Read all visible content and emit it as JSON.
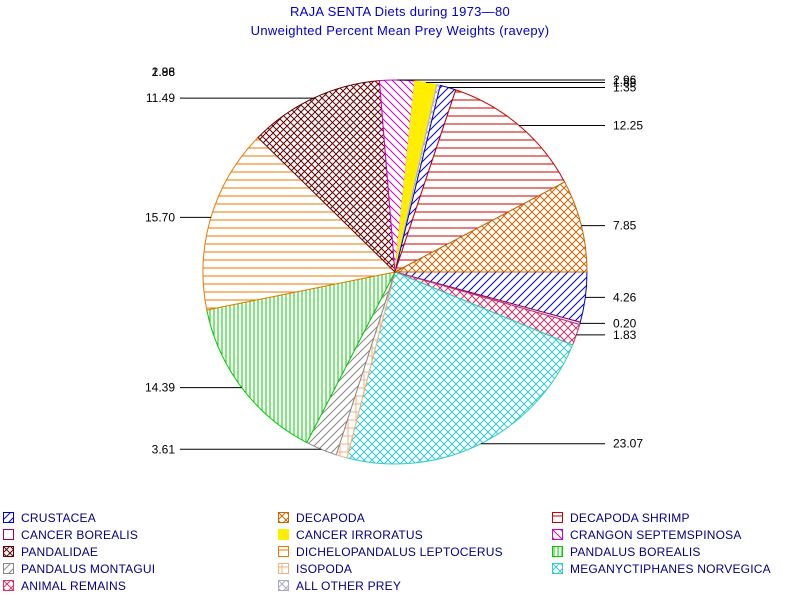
{
  "chart_data": {
    "type": "pie",
    "title": "RAJA SENTA Diets during 1973—80",
    "subtitle": "Unweighted Percent Mean Prey Weights (ravepy)",
    "slices": [
      {
        "name": "CRUSTACEA",
        "value": 4.26,
        "label": "4.26",
        "color": "#0000cc",
        "pattern": "diag-up"
      },
      {
        "name": "CANCER BOREALIS",
        "value": 0.2,
        "label": "0.20",
        "color": "#990066",
        "pattern": "outline"
      },
      {
        "name": "PANDALIDAE",
        "value": 1.83,
        "label": "1.83",
        "color": "#cc3366",
        "pattern": "cross"
      },
      {
        "name": "MEGANYCTIPHANES NORVEGICA",
        "value": 23.07,
        "label": "23.07",
        "color": "#33cccc",
        "pattern": "cross"
      },
      {
        "name": "ISOPODA",
        "value": 0.93,
        "label": "",
        "color": "#f0b080",
        "pattern": "grid"
      },
      {
        "name": "PANDALUS MONTAGUI",
        "value": 2.68,
        "label": "3.61",
        "color": "#888888",
        "pattern": "diag-up"
      },
      {
        "name": "PANDALUS BOREALIS",
        "value": 14.39,
        "label": "14.39",
        "color": "#00cc00",
        "pattern": "vertical"
      },
      {
        "name": "DICHELOPANDALUS LEPTOCERUS",
        "value": 15.7,
        "label": "15.70",
        "color": "#ee7700",
        "pattern": "horizontal"
      },
      {
        "name": "PANDALIDAE",
        "value": 11.49,
        "label": "11.49",
        "color": "#660000",
        "pattern": "cross-dense"
      },
      {
        "name": "CRANGON SEPTEMSPINOSA",
        "value": 2.96,
        "label": "2.96",
        "color": "#cc00cc",
        "pattern": "diag-down"
      },
      {
        "name": "CANCER IRRORATUS",
        "value": 1.88,
        "label": "1.88",
        "color": "#ffee00",
        "pattern": "solid"
      },
      {
        "name": "ALL OTHER PREY",
        "value": 0.3,
        "label": "",
        "color": "#aaaacc",
        "pattern": "cross"
      },
      {
        "name": "CRUSTACEA",
        "value": 1.35,
        "label": "1.35",
        "color": "#0000cc",
        "pattern": "diag-up"
      },
      {
        "name": "DECAPODA SHRIMP",
        "value": 12.25,
        "label": "12.25",
        "color": "#cc0000",
        "pattern": "horizontal"
      },
      {
        "name": "DECAPODA",
        "value": 7.85,
        "label": "7.85",
        "color": "#cc6600",
        "pattern": "cross"
      }
    ],
    "legend": [
      {
        "label": "CRUSTACEA",
        "color": "#0000cc",
        "pattern": "diag-up"
      },
      {
        "label": "DECAPODA",
        "color": "#cc6600",
        "pattern": "cross"
      },
      {
        "label": "DECAPODA SHRIMP",
        "color": "#cc0000",
        "pattern": "horizontal"
      },
      {
        "label": "CANCER BOREALIS",
        "color": "#990066",
        "pattern": "outline"
      },
      {
        "label": "CANCER IRRORATUS",
        "color": "#ffee00",
        "pattern": "solid"
      },
      {
        "label": "CRANGON SEPTEMSPINOSA",
        "color": "#cc00cc",
        "pattern": "diag-down"
      },
      {
        "label": "PANDALIDAE",
        "color": "#660000",
        "pattern": "cross-dense"
      },
      {
        "label": "DICHELOPANDALUS LEPTOCERUS",
        "color": "#ee7700",
        "pattern": "horizontal"
      },
      {
        "label": "PANDALUS BOREALIS",
        "color": "#00cc00",
        "pattern": "vertical"
      },
      {
        "label": "PANDALUS MONTAGUI",
        "color": "#888888",
        "pattern": "diag-up"
      },
      {
        "label": "ISOPODA",
        "color": "#f0b080",
        "pattern": "grid"
      },
      {
        "label": "MEGANYCTIPHANES NORVEGICA",
        "color": "#33cccc",
        "pattern": "cross"
      },
      {
        "label": "ANIMAL REMAINS",
        "color": "#dd3366",
        "pattern": "cross"
      },
      {
        "label": "ALL OTHER PREY",
        "color": "#aaaacc",
        "pattern": "cross"
      }
    ],
    "legend_placement": "bottom",
    "legend_columns": 3,
    "small_labels_top_left": [
      "2.96",
      "1.88"
    ]
  }
}
